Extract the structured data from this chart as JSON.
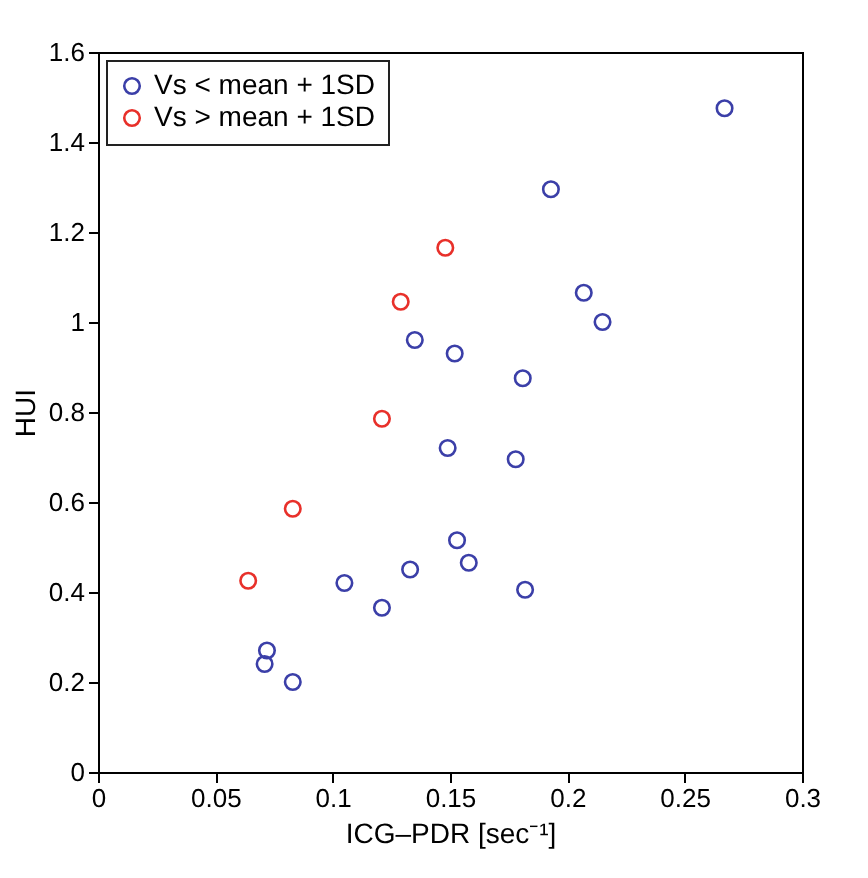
{
  "chart_data": {
    "type": "scatter",
    "xlabel": "ICG–PDR [sec⁻¹]",
    "ylabel": "HUI",
    "xlim": [
      0,
      0.3
    ],
    "xticks": [
      0,
      0.05,
      0.1,
      0.15,
      0.2,
      0.25,
      0.3
    ],
    "ylim": [
      0,
      1.6
    ],
    "yticks": [
      0,
      0.2,
      0.4,
      0.6,
      0.8,
      1,
      1.2,
      1.4,
      1.6
    ],
    "marker": "circle",
    "grid": false,
    "legend": "top left",
    "series": [
      {
        "name": "Vs < mean + 1SD",
        "color": "#3b3fa8",
        "x": [
          0.267,
          0.193,
          0.207,
          0.215,
          0.135,
          0.152,
          0.181,
          0.149,
          0.178,
          0.153,
          0.158,
          0.133,
          0.105,
          0.121,
          0.182,
          0.072,
          0.071,
          0.083
        ],
        "values": [
          1.475,
          1.295,
          1.065,
          1.0,
          0.96,
          0.93,
          0.875,
          0.72,
          0.695,
          0.515,
          0.465,
          0.45,
          0.42,
          0.365,
          0.405,
          0.27,
          0.24,
          0.2
        ]
      },
      {
        "name": "Vs > mean + 1SD",
        "color": "#e8302a",
        "x": [
          0.148,
          0.129,
          0.121,
          0.083,
          0.064
        ],
        "values": [
          1.165,
          1.045,
          0.785,
          0.585,
          0.425
        ]
      }
    ]
  }
}
